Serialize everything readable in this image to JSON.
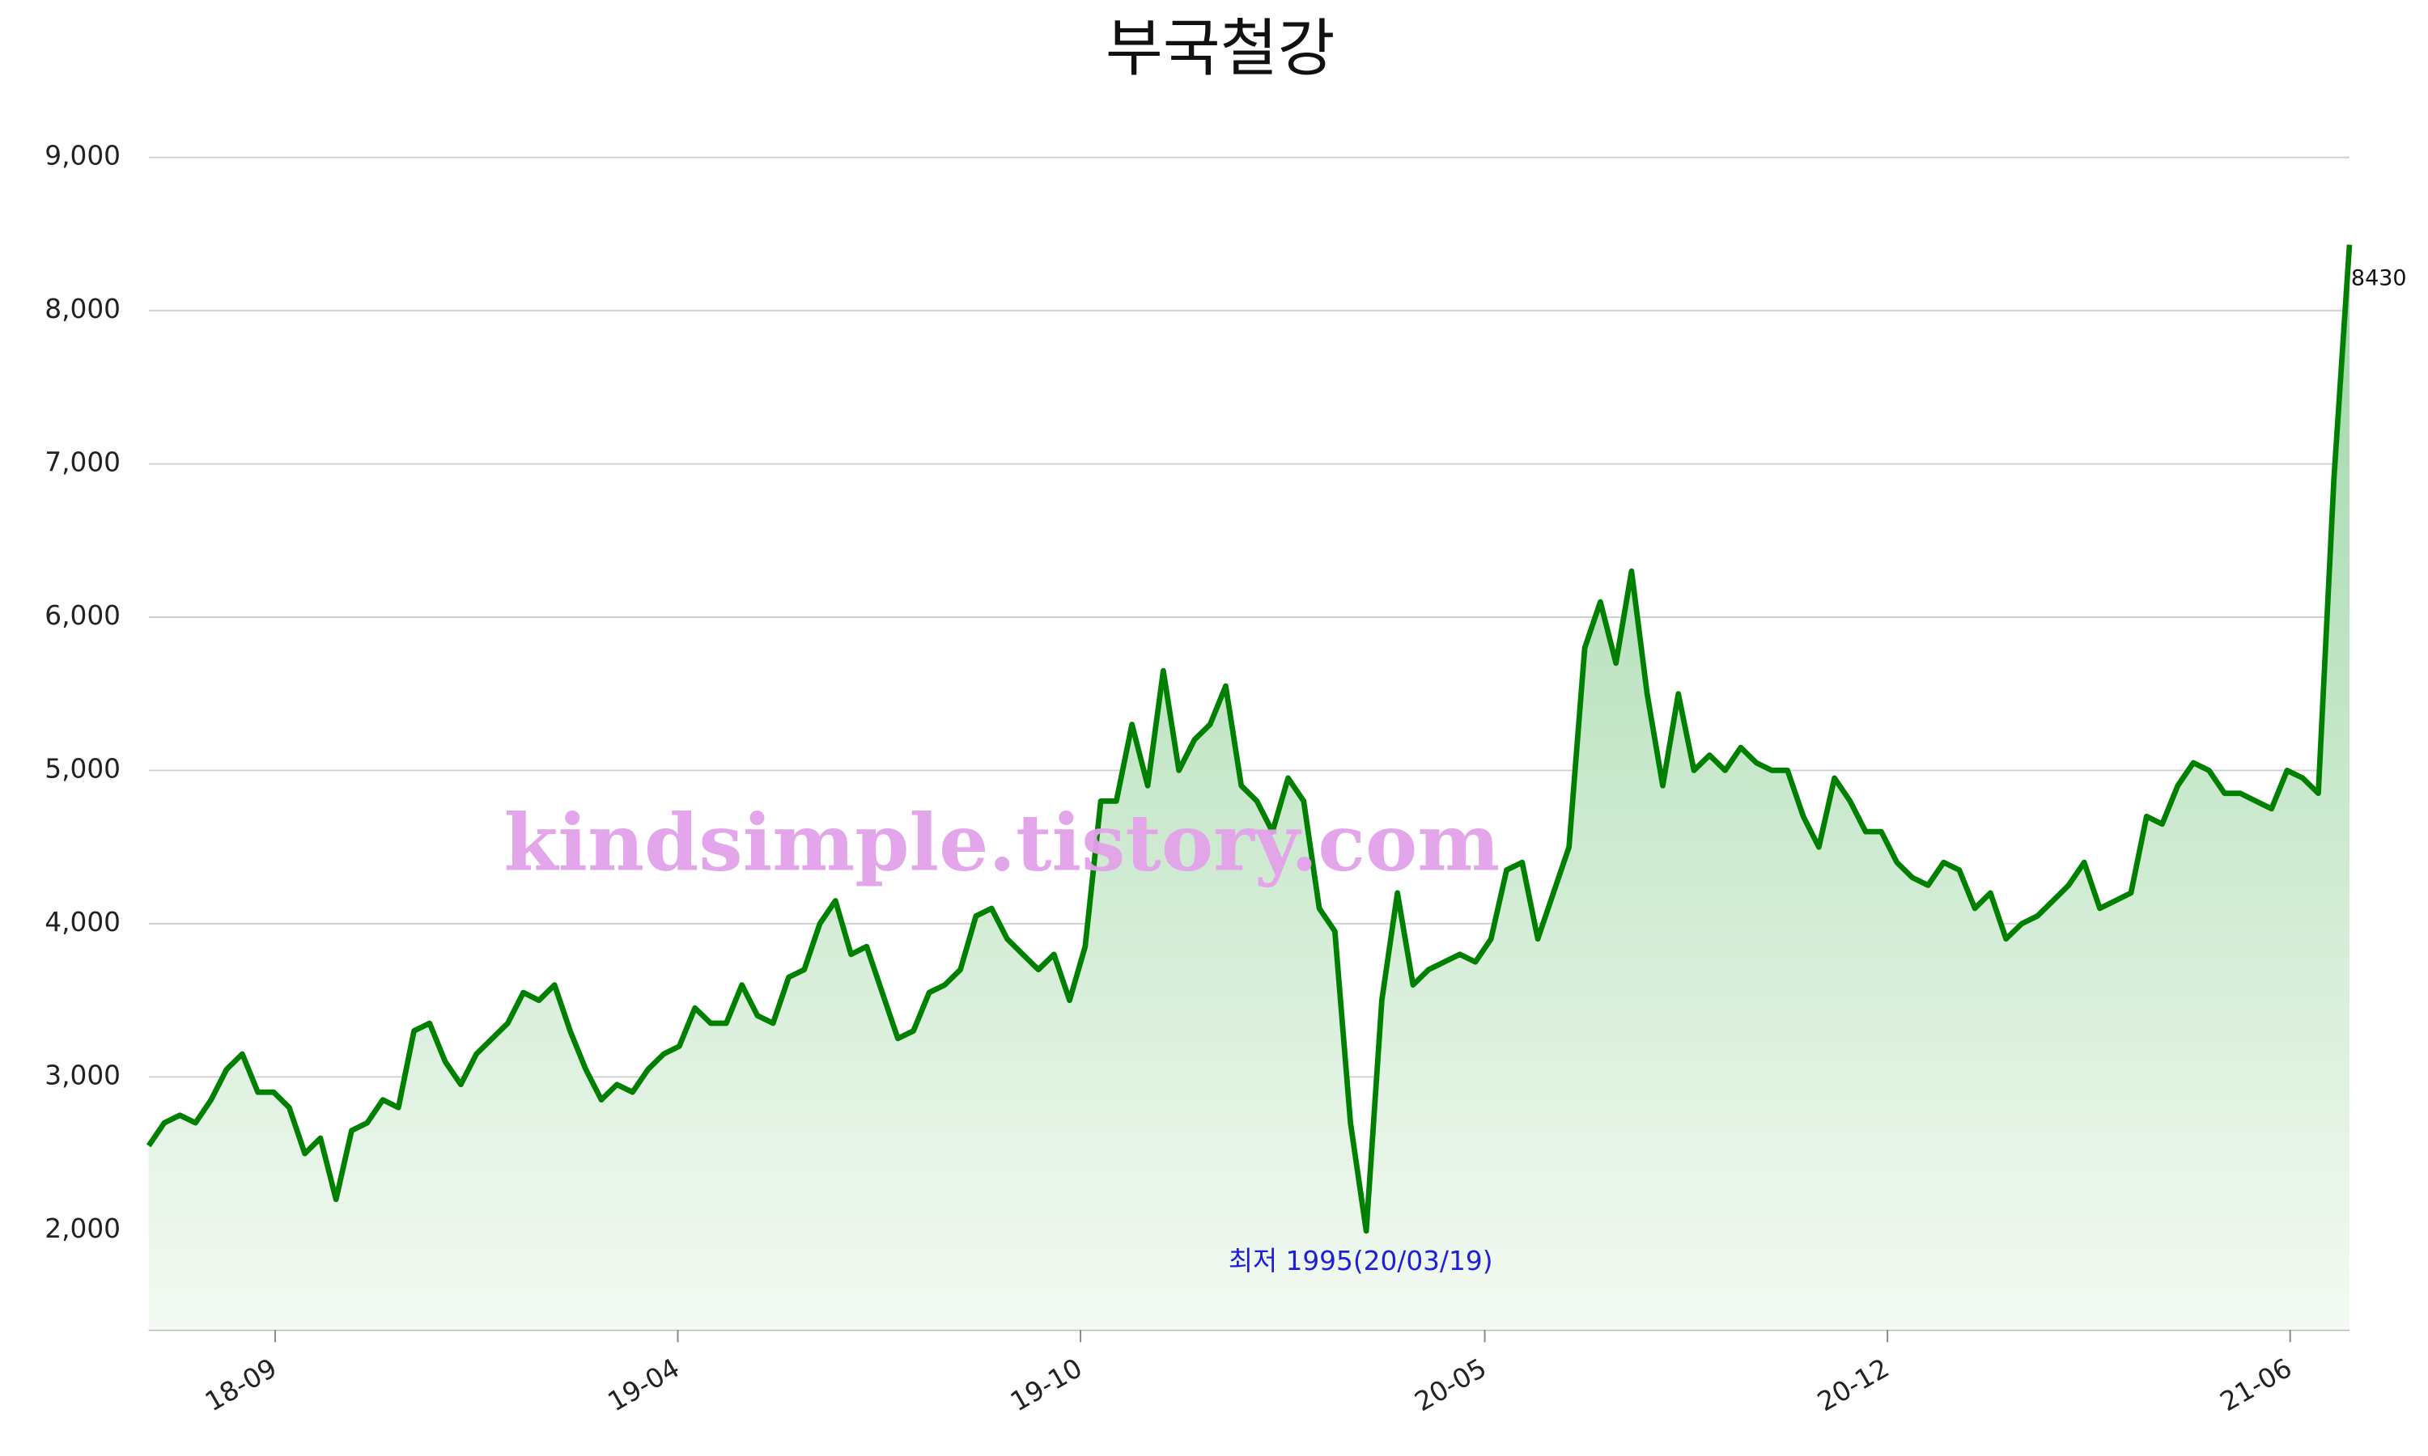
{
  "chart_data": {
    "type": "line",
    "title": "부국철강",
    "watermark": "kindsimple.tistory.com",
    "annotation": "최저 1995(20/03/19)",
    "series": [
      {
        "name": "부국철강",
        "color": "#008000",
        "values": [
          2550,
          2700,
          2750,
          2700,
          2850,
          3050,
          3150,
          2900,
          2900,
          2800,
          2500,
          2600,
          2200,
          2650,
          2700,
          2850,
          2800,
          3300,
          3350,
          3100,
          2950,
          3150,
          3250,
          3350,
          3550,
          3500,
          3600,
          3300,
          3050,
          2850,
          2950,
          2900,
          3050,
          3150,
          3200,
          3450,
          3350,
          3350,
          3600,
          3400,
          3350,
          3650,
          3700,
          4000,
          4150,
          3800,
          3850,
          3550,
          3250,
          3300,
          3550,
          3600,
          3700,
          4050,
          4100,
          3900,
          3800,
          3700,
          3800,
          3500,
          3850,
          4800,
          4800,
          5300,
          4900,
          5650,
          5000,
          5200,
          5300,
          5550,
          4900,
          4800,
          4600,
          4950,
          4800,
          4100,
          3950,
          2700,
          1995,
          3500,
          4200,
          3600,
          3700,
          3750,
          3800,
          3750,
          3900,
          4350,
          4400,
          3900,
          4200,
          4500,
          5800,
          6100,
          5700,
          6300,
          5500,
          4900,
          5500,
          5000,
          5100,
          5000,
          5150,
          5050,
          5000,
          5000,
          4700,
          4500,
          4950,
          4800,
          4600,
          4600,
          4400,
          4300,
          4250,
          4400,
          4350,
          4100,
          4200,
          3900,
          4000,
          4050,
          4150,
          4250,
          4400,
          4100,
          4150,
          4200,
          4700,
          4650,
          4900,
          5050,
          5000,
          4850,
          4850,
          4800,
          4750,
          5000,
          4950,
          4850,
          6900,
          8430
        ]
      }
    ],
    "xlim": [
      0,
      141
    ],
    "xticks": [
      {
        "value": 8.1,
        "label": "18-09"
      },
      {
        "value": 33.9,
        "label": "19-04"
      },
      {
        "value": 59.7,
        "label": "19-10"
      },
      {
        "value": 85.6,
        "label": "20-05"
      },
      {
        "value": 111.4,
        "label": "20-12"
      },
      {
        "value": 137.2,
        "label": "21-06"
      }
    ],
    "ylim": [
      1350,
      9000
    ],
    "yticks": [
      {
        "value": 2000,
        "label": "2,000"
      },
      {
        "value": 3000,
        "label": "3,000"
      },
      {
        "value": 4000,
        "label": "4,000"
      },
      {
        "value": 5000,
        "label": "5,000"
      },
      {
        "value": 6000,
        "label": "6,000"
      },
      {
        "value": 7000,
        "label": "7,000"
      },
      {
        "value": 8000,
        "label": "8,000"
      },
      {
        "value": 9000,
        "label": "9,000"
      }
    ],
    "grid": true
  }
}
